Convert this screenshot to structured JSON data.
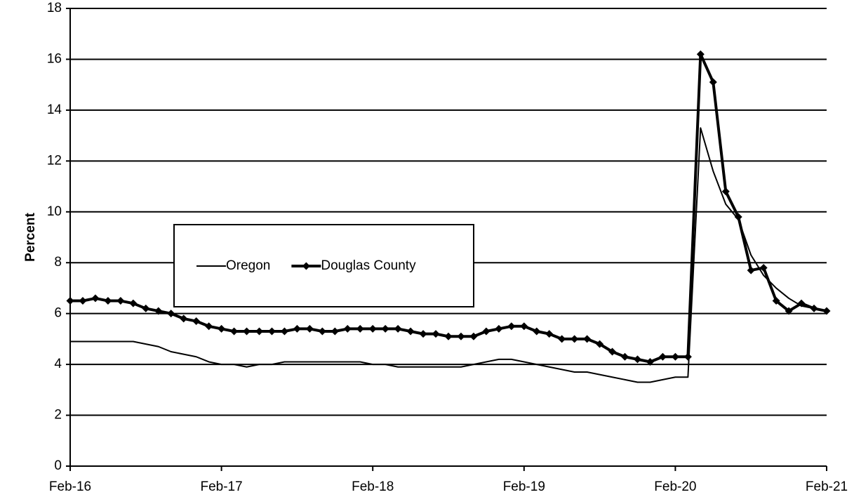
{
  "chart_data": {
    "type": "line",
    "y_label": "Percent",
    "categories": [
      "Feb-16",
      null,
      null,
      null,
      null,
      null,
      null,
      null,
      null,
      null,
      null,
      null,
      "Feb-17",
      null,
      null,
      null,
      null,
      null,
      null,
      null,
      null,
      null,
      null,
      null,
      "Feb-18",
      null,
      null,
      null,
      null,
      null,
      null,
      null,
      null,
      null,
      null,
      null,
      "Feb-19",
      null,
      null,
      null,
      null,
      null,
      null,
      null,
      null,
      null,
      null,
      null,
      "Feb-20",
      null,
      null,
      null,
      null,
      null,
      null,
      null,
      null,
      null,
      null,
      null,
      "Feb-21"
    ],
    "series": [
      {
        "name": "Oregon",
        "color": "#000000",
        "marker": false,
        "values": [
          4.9,
          4.9,
          4.9,
          4.9,
          4.9,
          4.9,
          4.8,
          4.7,
          4.5,
          4.4,
          4.3,
          4.1,
          4.0,
          4.0,
          3.9,
          4.0,
          4.0,
          4.1,
          4.1,
          4.1,
          4.1,
          4.1,
          4.1,
          4.1,
          4.0,
          4.0,
          3.9,
          3.9,
          3.9,
          3.9,
          3.9,
          3.9,
          4.0,
          4.1,
          4.2,
          4.2,
          4.1,
          4.0,
          3.9,
          3.8,
          3.7,
          3.7,
          3.6,
          3.5,
          3.4,
          3.3,
          3.3,
          3.4,
          3.5,
          3.5,
          13.3,
          11.6,
          10.3,
          9.7,
          8.3,
          7.5,
          7.0,
          6.6,
          6.3,
          6.2,
          6.1
        ]
      },
      {
        "name": "Douglas County",
        "color": "#000000",
        "marker": true,
        "values": [
          6.5,
          6.5,
          6.6,
          6.5,
          6.5,
          6.4,
          6.2,
          6.1,
          6.0,
          5.8,
          5.7,
          5.5,
          5.4,
          5.3,
          5.3,
          5.3,
          5.3,
          5.3,
          5.4,
          5.4,
          5.3,
          5.3,
          5.4,
          5.4,
          5.4,
          5.4,
          5.4,
          5.3,
          5.2,
          5.2,
          5.1,
          5.1,
          5.1,
          5.3,
          5.4,
          5.5,
          5.5,
          5.3,
          5.2,
          5.0,
          5.0,
          5.0,
          4.8,
          4.5,
          4.3,
          4.2,
          4.1,
          4.3,
          4.3,
          4.3,
          16.2,
          15.1,
          10.8,
          9.8,
          7.7,
          7.8,
          6.5,
          6.1,
          6.4,
          6.2,
          6.1
        ]
      }
    ],
    "ylim": [
      0,
      18
    ],
    "yticks": [
      0,
      2,
      4,
      6,
      8,
      10,
      12,
      14,
      16,
      18
    ],
    "grid": true
  }
}
